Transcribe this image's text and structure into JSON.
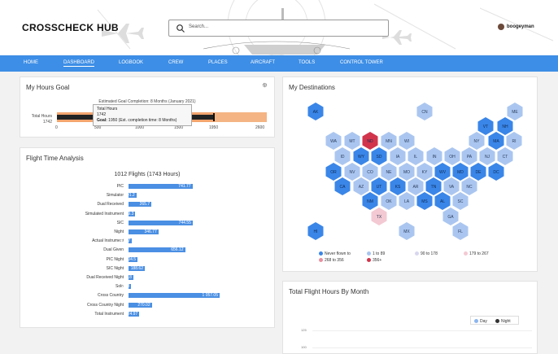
{
  "app": {
    "logo": "CROSSCHECK HUB",
    "search_placeholder": "Search...",
    "username": "boogeyman"
  },
  "nav": [
    {
      "label": "HOME"
    },
    {
      "label": "DASHBOARD"
    },
    {
      "label": "LOGBOOK"
    },
    {
      "label": "CREW"
    },
    {
      "label": "PLACES"
    },
    {
      "label": "AIRCRAFT"
    },
    {
      "label": "TOOLS"
    },
    {
      "label": "CONTROL TOWER"
    }
  ],
  "goal": {
    "title": "My Hours Goal",
    "estimate": "Estimated Goal Completion: 8 Months (January 2021)",
    "row_label": "Total Hours",
    "row_value": "1742",
    "ticks": [
      "0",
      "500",
      "1000",
      "1500",
      "1950",
      "2600"
    ],
    "current": 1742,
    "goal": 1950,
    "max": 2600,
    "tooltip_title": "Total Hours",
    "tooltip_value": "1742",
    "tooltip_goal_label": "Goal:",
    "tooltip_goal_text": "1950 (Est. completion time: 8 Months)"
  },
  "fta": {
    "title": "Flight Time Analysis",
    "subtitle": "1012 Flights (1743 Hours)"
  },
  "chart_data": {
    "type": "bar",
    "orientation": "horizontal",
    "title": "1012 Flights (1743 Hours)",
    "categories": [
      "PIC",
      "Simulator",
      "Dual Received",
      "Simulated Instrument",
      "SIC",
      "Night",
      "Actual Instrument",
      "Dual Given",
      "PIC Night",
      "SIC Night",
      "Dual Received Night",
      "Solo",
      "Cross Country",
      "Cross Country Night",
      "Total Instrument"
    ],
    "values": [
      741.77,
      91.2,
      265.7,
      79.3,
      744.55,
      346.77,
      41.67,
      656.12,
      104.5,
      188.62,
      55.8,
      32.3,
      1057.05,
      270.02,
      124.97
    ],
    "labels": [
      "741.77",
      "91.2",
      "265.7",
      "79.3",
      "744.55",
      "346.77",
      "41.67",
      "656.12",
      "104.5",
      "188.62",
      "55.8",
      "32.3",
      "1 057.05",
      "270.02",
      "124.97"
    ]
  },
  "destinations": {
    "title": "My Destinations",
    "states": [
      {
        "code": "AK",
        "level": "never"
      },
      {
        "code": "CN",
        "level": "low"
      },
      {
        "code": "ME",
        "level": "low"
      },
      {
        "code": "VT",
        "level": "mid"
      },
      {
        "code": "NH",
        "level": "mid"
      },
      {
        "code": "WA",
        "level": "low"
      },
      {
        "code": "MT",
        "level": "low"
      },
      {
        "code": "ND",
        "level": "high"
      },
      {
        "code": "MN",
        "level": "low"
      },
      {
        "code": "WI",
        "level": "low"
      },
      {
        "code": "NY",
        "level": "low"
      },
      {
        "code": "MA",
        "level": "mid"
      },
      {
        "code": "RI",
        "level": "low"
      },
      {
        "code": "ID",
        "level": "low"
      },
      {
        "code": "WY",
        "level": "mid"
      },
      {
        "code": "SD",
        "level": "mid"
      },
      {
        "code": "IA",
        "level": "low"
      },
      {
        "code": "IL",
        "level": "low"
      },
      {
        "code": "IN",
        "level": "low"
      },
      {
        "code": "OH",
        "level": "low"
      },
      {
        "code": "PA",
        "level": "low"
      },
      {
        "code": "NJ",
        "level": "low"
      },
      {
        "code": "CT",
        "level": "low"
      },
      {
        "code": "OR",
        "level": "mid"
      },
      {
        "code": "NV",
        "level": "low"
      },
      {
        "code": "CO",
        "level": "low"
      },
      {
        "code": "NE",
        "level": "low"
      },
      {
        "code": "MO",
        "level": "low"
      },
      {
        "code": "KY",
        "level": "low"
      },
      {
        "code": "WV",
        "level": "mid"
      },
      {
        "code": "MD",
        "level": "mid"
      },
      {
        "code": "DE",
        "level": "mid"
      },
      {
        "code": "DC",
        "level": "mid"
      },
      {
        "code": "CA",
        "level": "mid"
      },
      {
        "code": "AZ",
        "level": "low"
      },
      {
        "code": "UT",
        "level": "mid"
      },
      {
        "code": "KS",
        "level": "mid"
      },
      {
        "code": "AR",
        "level": "low"
      },
      {
        "code": "TN",
        "level": "mid"
      },
      {
        "code": "VA",
        "level": "low"
      },
      {
        "code": "NC",
        "level": "low"
      },
      {
        "code": "NM",
        "level": "mid"
      },
      {
        "code": "OK",
        "level": "low"
      },
      {
        "code": "LA",
        "level": "low"
      },
      {
        "code": "MS",
        "level": "mid"
      },
      {
        "code": "AL",
        "level": "mid"
      },
      {
        "code": "SC",
        "level": "low"
      },
      {
        "code": "TX",
        "level": "pink"
      },
      {
        "code": "GA",
        "level": "low"
      },
      {
        "code": "HI",
        "level": "mid"
      },
      {
        "code": "MX",
        "level": "low"
      },
      {
        "code": "FL",
        "level": "low"
      }
    ],
    "legend": [
      {
        "label": "Never flown to",
        "color": "#3a86e8"
      },
      {
        "label": "1 to 89",
        "color": "#a8c4f0"
      },
      {
        "label": "90 to 178",
        "color": "#d7d7ef"
      },
      {
        "label": "179 to 267",
        "color": "#f3c9d3"
      },
      {
        "label": "268 to 356",
        "color": "#e890a0"
      },
      {
        "label": "356+",
        "color": "#d2344c"
      }
    ]
  },
  "tfh": {
    "title": "Total Flight Hours By Month",
    "legend_day": "Day",
    "legend_night": "Night",
    "y_tick_1": "125",
    "y_tick_2": "100"
  },
  "colors": {
    "accent": "#3d8ee6",
    "bar": "#4a8fe3",
    "goal_orange": "#f3a46e"
  }
}
